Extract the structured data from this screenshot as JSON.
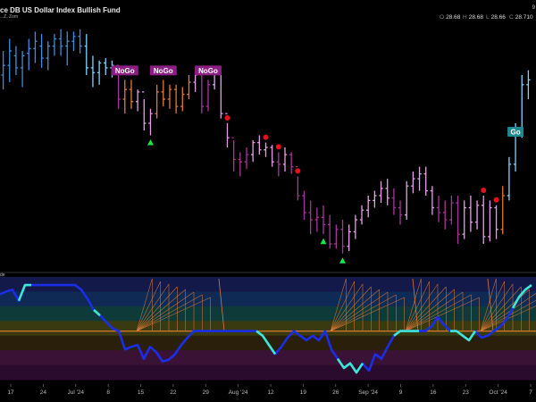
{
  "header": {
    "title": "ce DB US Dollar Index Bullish Fund",
    "subtitle": "...Z, Zom",
    "ohlc": [
      {
        "key": "O",
        "value": "28.68"
      },
      {
        "key": "H",
        "value": "28.68"
      },
      {
        "key": "L",
        "value": "28.66"
      },
      {
        "key": "C",
        "value": "28.710"
      }
    ],
    "top_right_marker": "9"
  },
  "oscillator_label": "de",
  "colors": {
    "background": "#000000",
    "go_strong": "#3a8fe0",
    "go_weak": "#7fd3ff",
    "nogo_strong": "#a8359a",
    "nogo_weak": "#e5a0e8",
    "amber": "#e07a3a",
    "bullish_triangle": "#19e64a",
    "bearish_dot": "#e8101a",
    "oscillator_line": "#1a2ee8",
    "oscillator_highlight": "#3fe6d0",
    "zero_line": "#d9782a"
  },
  "chart_data": {
    "type": "ohlc",
    "title": "ce DB US Dollar Index Bullish Fund",
    "x_tick_labels": [
      "17",
      "24",
      "Jul '24",
      "8",
      "15",
      "22",
      "29",
      "Aug '24",
      "12",
      "19",
      "26",
      "Sep '24",
      "9",
      "16",
      "23",
      "Oct '24",
      "7"
    ],
    "ohlc_latest": {
      "open": 28.68,
      "high": 28.68,
      "low": 28.66,
      "close": 28.71
    },
    "labels": [
      {
        "text": "NoGo",
        "color": "#8b1f82",
        "bar": 19
      },
      {
        "text": "NoGo",
        "color": "#8b1f82",
        "bar": 25
      },
      {
        "text": "NoGo",
        "color": "#8b1f82",
        "bar": 32
      },
      {
        "text": "Go",
        "color": "#1c8a8e",
        "bar": 80
      }
    ],
    "bullish_triangles": [
      23,
      50,
      53
    ],
    "bearish_dots": [
      35,
      41,
      43,
      46,
      75,
      77
    ],
    "price_bars": [
      {
        "o": 0.2,
        "h": 0.1,
        "l": 0.26,
        "c": 0.16,
        "col": "go_strong"
      },
      {
        "o": 0.16,
        "h": 0.05,
        "l": 0.23,
        "c": 0.1,
        "col": "go_strong"
      },
      {
        "o": 0.12,
        "h": 0.08,
        "l": 0.2,
        "c": 0.17,
        "col": "go_strong"
      },
      {
        "o": 0.17,
        "h": 0.1,
        "l": 0.25,
        "c": 0.12,
        "col": "go_strong"
      },
      {
        "o": 0.11,
        "h": 0.05,
        "l": 0.18,
        "c": 0.09,
        "col": "go_strong"
      },
      {
        "o": 0.09,
        "h": 0.02,
        "l": 0.15,
        "c": 0.06,
        "col": "go_strong"
      },
      {
        "o": 0.08,
        "h": 0.03,
        "l": 0.17,
        "c": 0.13,
        "col": "go_strong"
      },
      {
        "o": 0.13,
        "h": 0.06,
        "l": 0.18,
        "c": 0.08,
        "col": "go_strong"
      },
      {
        "o": 0.08,
        "h": 0.03,
        "l": 0.12,
        "c": 0.05,
        "col": "go_strong"
      },
      {
        "o": 0.05,
        "h": 0.01,
        "l": 0.12,
        "c": 0.08,
        "col": "go_strong"
      },
      {
        "o": 0.08,
        "h": 0.02,
        "l": 0.16,
        "c": 0.06,
        "col": "go_strong"
      },
      {
        "o": 0.06,
        "h": 0.02,
        "l": 0.1,
        "c": 0.04,
        "col": "go_strong"
      },
      {
        "o": 0.04,
        "h": 0.01,
        "l": 0.11,
        "c": 0.08,
        "col": "go_strong"
      },
      {
        "o": 0.08,
        "h": 0.03,
        "l": 0.2,
        "c": 0.17,
        "col": "go_weak"
      },
      {
        "o": 0.17,
        "h": 0.12,
        "l": 0.25,
        "c": 0.19,
        "col": "go_weak"
      },
      {
        "o": 0.19,
        "h": 0.14,
        "l": 0.24,
        "c": 0.15,
        "col": "go_weak"
      },
      {
        "o": 0.15,
        "h": 0.13,
        "l": 0.2,
        "c": 0.17,
        "col": "go_weak"
      },
      {
        "o": 0.17,
        "h": 0.14,
        "l": 0.21,
        "c": 0.16,
        "col": "go_weak"
      },
      {
        "o": 0.16,
        "h": 0.2,
        "l": 0.34,
        "c": 0.3,
        "col": "nogo_strong"
      },
      {
        "o": 0.3,
        "h": 0.22,
        "l": 0.36,
        "c": 0.26,
        "col": "amber"
      },
      {
        "o": 0.26,
        "h": 0.22,
        "l": 0.34,
        "c": 0.31,
        "col": "amber"
      },
      {
        "o": 0.31,
        "h": 0.26,
        "l": 0.35,
        "c": 0.27,
        "col": "nogo_weak"
      },
      {
        "o": 0.27,
        "h": 0.3,
        "l": 0.43,
        "c": 0.4,
        "col": "nogo_weak"
      },
      {
        "o": 0.4,
        "h": 0.34,
        "l": 0.45,
        "c": 0.36,
        "col": "nogo_weak"
      },
      {
        "o": 0.36,
        "h": 0.24,
        "l": 0.38,
        "c": 0.27,
        "col": "amber"
      },
      {
        "o": 0.27,
        "h": 0.22,
        "l": 0.33,
        "c": 0.3,
        "col": "amber"
      },
      {
        "o": 0.3,
        "h": 0.24,
        "l": 0.34,
        "c": 0.26,
        "col": "amber"
      },
      {
        "o": 0.26,
        "h": 0.24,
        "l": 0.36,
        "c": 0.33,
        "col": "amber"
      },
      {
        "o": 0.33,
        "h": 0.25,
        "l": 0.35,
        "c": 0.28,
        "col": "amber"
      },
      {
        "o": 0.28,
        "h": 0.2,
        "l": 0.3,
        "c": 0.23,
        "col": "amber"
      },
      {
        "o": 0.23,
        "h": 0.18,
        "l": 0.27,
        "c": 0.2,
        "col": "nogo_weak"
      },
      {
        "o": 0.2,
        "h": 0.2,
        "l": 0.36,
        "c": 0.33,
        "col": "nogo_strong"
      },
      {
        "o": 0.33,
        "h": 0.22,
        "l": 0.35,
        "c": 0.24,
        "col": "nogo_strong"
      },
      {
        "o": 0.24,
        "h": 0.17,
        "l": 0.26,
        "c": 0.19,
        "col": "nogo_weak"
      },
      {
        "o": 0.19,
        "h": 0.2,
        "l": 0.38,
        "c": 0.36,
        "col": "nogo_weak"
      },
      {
        "o": 0.36,
        "h": 0.4,
        "l": 0.5,
        "c": 0.46,
        "col": "nogo_weak"
      },
      {
        "o": 0.46,
        "h": 0.47,
        "l": 0.6,
        "c": 0.55,
        "col": "nogo_strong"
      },
      {
        "o": 0.55,
        "h": 0.52,
        "l": 0.62,
        "c": 0.56,
        "col": "nogo_strong"
      },
      {
        "o": 0.56,
        "h": 0.5,
        "l": 0.59,
        "c": 0.53,
        "col": "nogo_strong"
      },
      {
        "o": 0.53,
        "h": 0.47,
        "l": 0.56,
        "c": 0.48,
        "col": "nogo_weak"
      },
      {
        "o": 0.48,
        "h": 0.45,
        "l": 0.53,
        "c": 0.51,
        "col": "nogo_weak"
      },
      {
        "o": 0.51,
        "h": 0.48,
        "l": 0.54,
        "c": 0.5,
        "col": "nogo_weak"
      },
      {
        "o": 0.5,
        "h": 0.49,
        "l": 0.58,
        "c": 0.56,
        "col": "nogo_weak"
      },
      {
        "o": 0.56,
        "h": 0.52,
        "l": 0.62,
        "c": 0.57,
        "col": "nogo_strong"
      },
      {
        "o": 0.57,
        "h": 0.5,
        "l": 0.6,
        "c": 0.53,
        "col": "nogo_weak"
      },
      {
        "o": 0.53,
        "h": 0.52,
        "l": 0.61,
        "c": 0.58,
        "col": "nogo_strong"
      },
      {
        "o": 0.58,
        "h": 0.62,
        "l": 0.72,
        "c": 0.7,
        "col": "nogo_strong"
      },
      {
        "o": 0.7,
        "h": 0.68,
        "l": 0.8,
        "c": 0.77,
        "col": "nogo_strong"
      },
      {
        "o": 0.77,
        "h": 0.72,
        "l": 0.86,
        "c": 0.8,
        "col": "nogo_strong"
      },
      {
        "o": 0.8,
        "h": 0.75,
        "l": 0.85,
        "c": 0.79,
        "col": "nogo_strong"
      },
      {
        "o": 0.79,
        "h": 0.74,
        "l": 0.86,
        "c": 0.82,
        "col": "nogo_strong"
      },
      {
        "o": 0.82,
        "h": 0.78,
        "l": 0.92,
        "c": 0.9,
        "col": "nogo_strong"
      },
      {
        "o": 0.9,
        "h": 0.82,
        "l": 0.92,
        "c": 0.84,
        "col": "nogo_strong"
      },
      {
        "o": 0.84,
        "h": 0.8,
        "l": 0.94,
        "c": 0.91,
        "col": "nogo_strong"
      },
      {
        "o": 0.91,
        "h": 0.82,
        "l": 0.93,
        "c": 0.85,
        "col": "nogo_weak"
      },
      {
        "o": 0.85,
        "h": 0.78,
        "l": 0.88,
        "c": 0.8,
        "col": "nogo_weak"
      },
      {
        "o": 0.8,
        "h": 0.74,
        "l": 0.82,
        "c": 0.76,
        "col": "nogo_weak"
      },
      {
        "o": 0.76,
        "h": 0.7,
        "l": 0.79,
        "c": 0.72,
        "col": "nogo_weak"
      },
      {
        "o": 0.72,
        "h": 0.68,
        "l": 0.75,
        "c": 0.7,
        "col": "nogo_weak"
      },
      {
        "o": 0.7,
        "h": 0.64,
        "l": 0.73,
        "c": 0.67,
        "col": "nogo_weak"
      },
      {
        "o": 0.67,
        "h": 0.63,
        "l": 0.74,
        "c": 0.71,
        "col": "nogo_weak"
      },
      {
        "o": 0.71,
        "h": 0.67,
        "l": 0.78,
        "c": 0.75,
        "col": "nogo_strong"
      },
      {
        "o": 0.75,
        "h": 0.72,
        "l": 0.82,
        "c": 0.78,
        "col": "nogo_strong"
      },
      {
        "o": 0.78,
        "h": 0.64,
        "l": 0.8,
        "c": 0.66,
        "col": "nogo_weak"
      },
      {
        "o": 0.66,
        "h": 0.6,
        "l": 0.69,
        "c": 0.63,
        "col": "nogo_weak"
      },
      {
        "o": 0.63,
        "h": 0.58,
        "l": 0.68,
        "c": 0.61,
        "col": "nogo_weak"
      },
      {
        "o": 0.61,
        "h": 0.58,
        "l": 0.7,
        "c": 0.68,
        "col": "nogo_weak"
      },
      {
        "o": 0.68,
        "h": 0.66,
        "l": 0.78,
        "c": 0.75,
        "col": "nogo_weak"
      },
      {
        "o": 0.75,
        "h": 0.7,
        "l": 0.81,
        "c": 0.77,
        "col": "nogo_strong"
      },
      {
        "o": 0.77,
        "h": 0.72,
        "l": 0.84,
        "c": 0.8,
        "col": "nogo_strong"
      },
      {
        "o": 0.8,
        "h": 0.7,
        "l": 0.82,
        "c": 0.73,
        "col": "nogo_strong"
      },
      {
        "o": 0.73,
        "h": 0.7,
        "l": 0.9,
        "c": 0.86,
        "col": "nogo_strong"
      },
      {
        "o": 0.86,
        "h": 0.72,
        "l": 0.88,
        "c": 0.75,
        "col": "nogo_weak"
      },
      {
        "o": 0.75,
        "h": 0.7,
        "l": 0.85,
        "c": 0.81,
        "col": "nogo_weak"
      },
      {
        "o": 0.81,
        "h": 0.72,
        "l": 0.84,
        "c": 0.74,
        "col": "nogo_weak"
      },
      {
        "o": 0.74,
        "h": 0.7,
        "l": 0.9,
        "c": 0.87,
        "col": "nogo_weak"
      },
      {
        "o": 0.87,
        "h": 0.72,
        "l": 0.89,
        "c": 0.75,
        "col": "nogo_weak"
      },
      {
        "o": 0.75,
        "h": 0.74,
        "l": 0.88,
        "c": 0.84,
        "col": "nogo_weak"
      },
      {
        "o": 0.84,
        "h": 0.66,
        "l": 0.86,
        "c": 0.7,
        "col": "amber"
      },
      {
        "o": 0.7,
        "h": 0.54,
        "l": 0.72,
        "c": 0.57,
        "col": "go_weak"
      },
      {
        "o": 0.57,
        "h": 0.4,
        "l": 0.6,
        "c": 0.44,
        "col": "go_weak"
      },
      {
        "o": 0.44,
        "h": 0.2,
        "l": 0.46,
        "c": 0.24,
        "col": "go_weak"
      },
      {
        "o": 0.24,
        "h": 0.18,
        "l": 0.3,
        "c": 0.22,
        "col": "go_weak"
      }
    ],
    "oscillator": {
      "bands": [
        "#131a4a",
        "#0e2a55",
        "#0f3a3a",
        "#3a3a10",
        "#2a1f0a",
        "#3a1236",
        "#2a0b2e"
      ],
      "values": [
        0.15,
        0.12,
        0.1,
        0.22,
        0.05,
        0.05,
        0.05,
        0.05,
        0.05,
        0.05,
        0.05,
        0.05,
        0.05,
        0.1,
        0.2,
        0.32,
        0.38,
        0.45,
        0.52,
        0.55,
        0.75,
        0.72,
        0.7,
        0.85,
        0.72,
        0.78,
        0.88,
        0.86,
        0.8,
        0.7,
        0.62,
        0.55,
        0.55,
        0.55,
        0.55,
        0.55,
        0.55,
        0.55,
        0.55,
        0.55,
        0.55,
        0.55,
        0.6,
        0.7,
        0.8,
        0.72,
        0.62,
        0.55,
        0.6,
        0.65,
        0.6,
        0.65,
        0.55,
        0.75,
        0.85,
        0.95,
        0.9,
        1.0,
        0.9,
        0.98,
        0.8,
        0.85,
        0.72,
        0.6,
        0.55,
        0.55,
        0.55,
        0.55,
        0.55,
        0.5,
        0.4,
        0.48,
        0.55,
        0.55,
        0.6,
        0.65,
        0.55,
        0.62,
        0.6,
        0.55,
        0.5,
        0.42,
        0.3,
        0.18,
        0.1,
        0.05
      ],
      "highlight_segments": [
        [
          3,
          5
        ],
        [
          15,
          16
        ],
        [
          41,
          44
        ],
        [
          54,
          58
        ],
        [
          63,
          67
        ],
        [
          72,
          76
        ],
        [
          82,
          85
        ]
      ],
      "zero_level": 0.55,
      "cloud_starts": [
        23,
        54,
        66,
        78
      ]
    }
  }
}
